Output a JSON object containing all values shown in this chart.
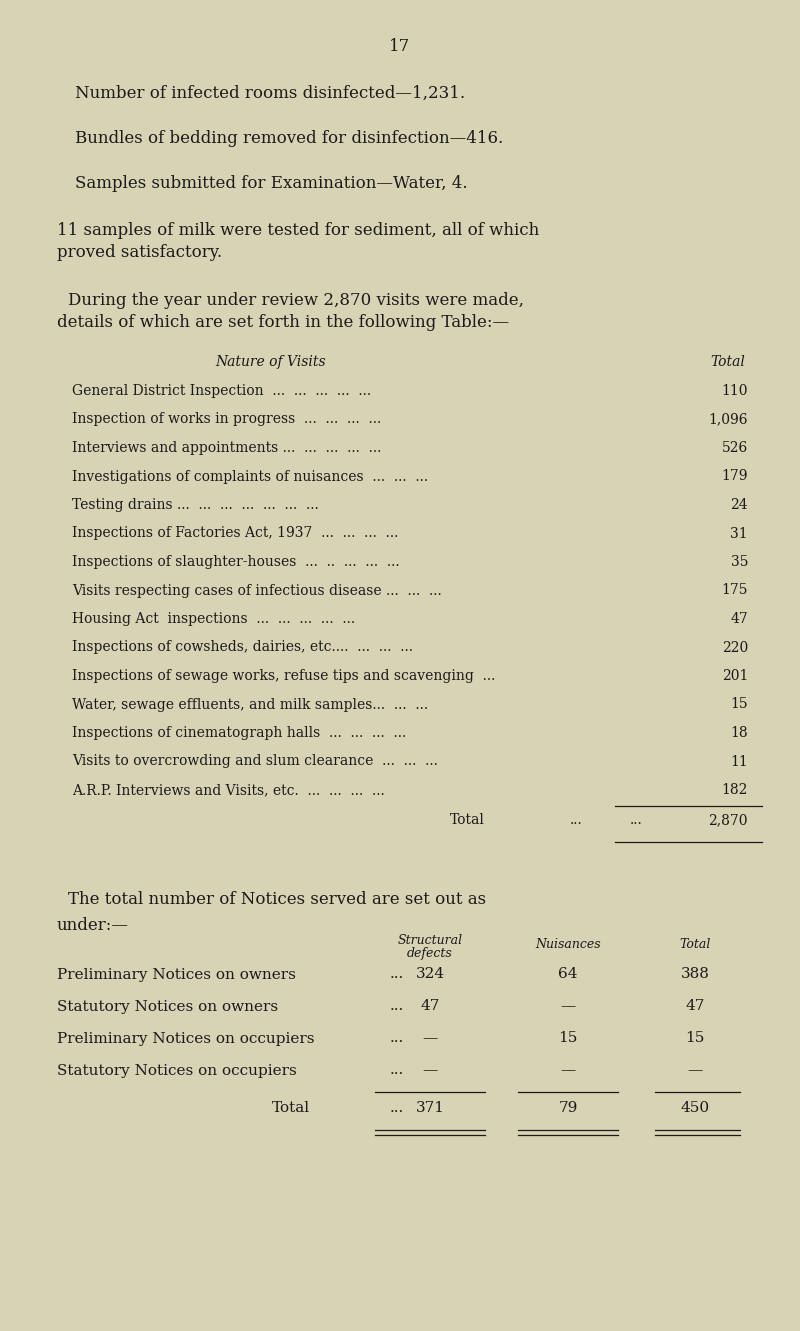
{
  "bg_color": "#d8d3b5",
  "text_color": "#1a1a1a",
  "page_number": "17",
  "para1": "Number of infected rooms disinfected—1,231.",
  "para2": "Bundles of bedding removed for disinfection—416.",
  "para3": "Samples submitted for Examination—Water, 4.",
  "para4a": "11 samples of milk were tested for sediment, all of which",
  "para4b": "proved satisfactory.",
  "para5a": "During the year under review 2,870 visits were made,",
  "para5b": "details of which are set forth in the following Table:—",
  "tbl1_hdr_left": "Nature of Visits",
  "tbl1_hdr_right": "Total",
  "tbl1_rows": [
    [
      "General District Inspection  ...  ...  ...  ...  ...",
      "110"
    ],
    [
      "Inspection of works in progress  ...  ...  ...  ...",
      "1,096"
    ],
    [
      "Interviews and appointments ...  ...  ...  ...  ...",
      "526"
    ],
    [
      "Investigations of complaints of nuisances  ...  ...  ...",
      "179"
    ],
    [
      "Testing drains ...  ...  ...  ...  ...  ...  ...",
      "24"
    ],
    [
      "Inspections of Factories Act, 1937  ...  ...  ...  ...",
      "31"
    ],
    [
      "Inspections of slaughter-houses  ...  ..  ...  ...  ...",
      "35"
    ],
    [
      "Visits respecting cases of infectious disease ...  ...  ...",
      "175"
    ],
    [
      "Housing Act  inspections  ...  ...  ...  ...  ...",
      "47"
    ],
    [
      "Inspections of cowsheds, dairies, etc....  ...  ...  ...",
      "220"
    ],
    [
      "Inspections of sewage works, refuse tips and scavenging  ...",
      "201"
    ],
    [
      "Water, sewage effluents, and milk samples...  ...  ...",
      "15"
    ],
    [
      "Inspections of cinematograph halls  ...  ...  ...  ...",
      "18"
    ],
    [
      "Visits to overcrowding and slum clearance  ...  ...  ...",
      "11"
    ],
    [
      "A.R.P. Interviews and Visits, etc.  ...  ...  ...  ...",
      "182"
    ]
  ],
  "tbl1_total": "2,870",
  "notices_line1": "The total number of Notices served are set out as",
  "notices_line2": "under:—",
  "tbl2_col1_hdr": "Structural",
  "tbl2_col1_hdr2": "defects",
  "tbl2_col2_hdr": "Nuisances",
  "tbl2_col3_hdr": "Total",
  "tbl2_rows": [
    [
      "Preliminary Notices on owners",
      "...",
      "324",
      "64",
      "388"
    ],
    [
      "Statutory Notices on owners",
      "...",
      "47",
      "—",
      "47"
    ],
    [
      "Preliminary Notices on occupiers",
      "...",
      "—",
      "15",
      "15"
    ],
    [
      "Statutory Notices on occupiers",
      "...",
      "—",
      "—",
      "—"
    ]
  ],
  "tbl2_totals": [
    "371",
    "79",
    "450"
  ]
}
